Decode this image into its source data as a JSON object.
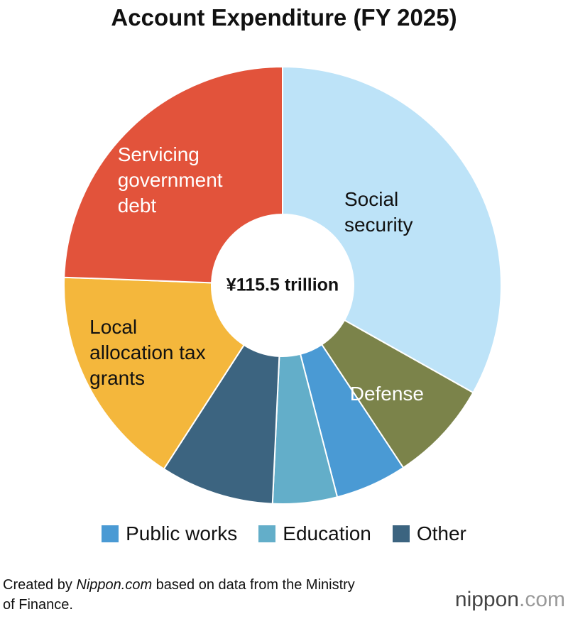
{
  "chart_data": {
    "type": "donut",
    "title": "Account Expenditure (FY 2025)",
    "center_label": "¥115.5 trillion",
    "categories": [
      "Social security",
      "Defense",
      "Public works",
      "Education",
      "Other",
      "Local allocation tax grants",
      "Servicing government debt"
    ],
    "values": [
      38.3,
      8.7,
      6.1,
      5.5,
      9.7,
      19.0,
      28.2
    ],
    "colors": [
      "#bde3f8",
      "#7b834a",
      "#4a9ad4",
      "#63aec9",
      "#3c6480",
      "#f4b73c",
      "#e2533b"
    ],
    "label_positions": [
      "inside",
      "inside",
      "legend",
      "legend",
      "legend",
      "inside",
      "inside"
    ],
    "label_colors": [
      "#111111",
      "#ffffff",
      "#111111",
      "#111111",
      "#111111",
      "#111111",
      "#ffffff"
    ]
  },
  "source": {
    "prefix": "Created by ",
    "italic": "Nippon.com",
    "suffix": " based on data from the Ministry of Finance."
  },
  "logo": [
    "nippon",
    ".com"
  ]
}
